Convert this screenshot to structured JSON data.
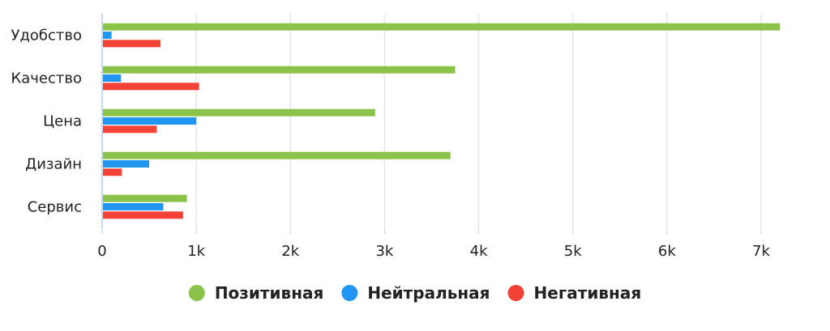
{
  "chart_data": {
    "type": "bar",
    "orientation": "horizontal",
    "categories": [
      "Удобство",
      "Качество",
      "Цена",
      "Дизайн",
      "Сервис"
    ],
    "series": [
      {
        "name": "Позитивная",
        "color": "#8BC34A",
        "values": [
          7200,
          3750,
          2900,
          3700,
          900
        ]
      },
      {
        "name": "Нейтральная",
        "color": "#2196F3",
        "values": [
          100,
          200,
          1000,
          500,
          650
        ]
      },
      {
        "name": "Негативная",
        "color": "#F44336",
        "values": [
          620,
          1030,
          580,
          210,
          860
        ]
      }
    ],
    "xlim": [
      0,
      7500
    ],
    "x_ticks": [
      {
        "value": 0,
        "label": "0"
      },
      {
        "value": 1000,
        "label": "1k"
      },
      {
        "value": 2000,
        "label": "2k"
      },
      {
        "value": 3000,
        "label": "3k"
      },
      {
        "value": 4000,
        "label": "4k"
      },
      {
        "value": 5000,
        "label": "5k"
      },
      {
        "value": 6000,
        "label": "6k"
      },
      {
        "value": 7000,
        "label": "7k"
      }
    ],
    "grid": true,
    "legend_position": "bottom",
    "title": "",
    "xlabel": "",
    "ylabel": ""
  }
}
